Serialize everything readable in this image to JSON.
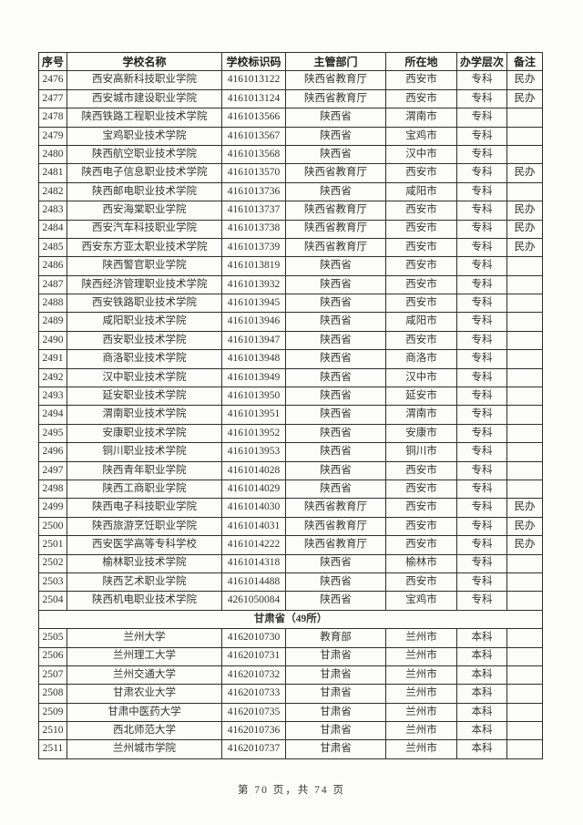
{
  "page": {
    "footer": "第 70 页，共 74 页"
  },
  "table": {
    "columns": [
      {
        "key": "xuhao",
        "label": "序号",
        "cls": "col-xh"
      },
      {
        "key": "mingcheng",
        "label": "学校名称",
        "cls": "col-mc"
      },
      {
        "key": "biaoshima",
        "label": "学校标识码",
        "cls": "col-bsm"
      },
      {
        "key": "zhuguan",
        "label": "主管部门",
        "cls": "col-zgbm"
      },
      {
        "key": "suozaidi",
        "label": "所在地",
        "cls": "col-szd"
      },
      {
        "key": "cengci",
        "label": "办学层次",
        "cls": "col-cc"
      },
      {
        "key": "beizhu",
        "label": "备注",
        "cls": "col-bz"
      }
    ],
    "rows": [
      {
        "t": "r",
        "c": [
          "2476",
          "西安高新科技职业学院",
          "4161013122",
          "陕西省教育厅",
          "西安市",
          "专科",
          "民办"
        ]
      },
      {
        "t": "r",
        "c": [
          "2477",
          "西安城市建设职业学院",
          "4161013124",
          "陕西省教育厅",
          "西安市",
          "专科",
          "民办"
        ]
      },
      {
        "t": "r",
        "c": [
          "2478",
          "陕西铁路工程职业技术学院",
          "4161013566",
          "陕西省",
          "渭南市",
          "专科",
          ""
        ]
      },
      {
        "t": "r",
        "c": [
          "2479",
          "宝鸡职业技术学院",
          "4161013567",
          "陕西省",
          "宝鸡市",
          "专科",
          ""
        ]
      },
      {
        "t": "r",
        "c": [
          "2480",
          "陕西航空职业技术学院",
          "4161013568",
          "陕西省",
          "汉中市",
          "专科",
          ""
        ]
      },
      {
        "t": "r",
        "c": [
          "2481",
          "陕西电子信息职业技术学院",
          "4161013570",
          "陕西省教育厅",
          "西安市",
          "专科",
          "民办"
        ]
      },
      {
        "t": "r",
        "c": [
          "2482",
          "陕西邮电职业技术学院",
          "4161013736",
          "陕西省",
          "咸阳市",
          "专科",
          ""
        ]
      },
      {
        "t": "r",
        "c": [
          "2483",
          "西安海棠职业学院",
          "4161013737",
          "陕西省教育厅",
          "西安市",
          "专科",
          "民办"
        ]
      },
      {
        "t": "r",
        "c": [
          "2484",
          "西安汽车科技职业学院",
          "4161013738",
          "陕西省教育厅",
          "西安市",
          "专科",
          "民办"
        ]
      },
      {
        "t": "r",
        "c": [
          "2485",
          "西安东方亚太职业技术学院",
          "4161013739",
          "陕西省教育厅",
          "西安市",
          "专科",
          "民办"
        ]
      },
      {
        "t": "r",
        "c": [
          "2486",
          "陕西警官职业学院",
          "4161013819",
          "陕西省",
          "西安市",
          "专科",
          ""
        ]
      },
      {
        "t": "r",
        "c": [
          "2487",
          "陕西经济管理职业技术学院",
          "4161013932",
          "陕西省",
          "西安市",
          "专科",
          ""
        ]
      },
      {
        "t": "r",
        "c": [
          "2488",
          "西安铁路职业技术学院",
          "4161013945",
          "陕西省",
          "西安市",
          "专科",
          ""
        ]
      },
      {
        "t": "r",
        "c": [
          "2489",
          "咸阳职业技术学院",
          "4161013946",
          "陕西省",
          "咸阳市",
          "专科",
          ""
        ]
      },
      {
        "t": "r",
        "c": [
          "2490",
          "西安职业技术学院",
          "4161013947",
          "陕西省",
          "西安市",
          "专科",
          ""
        ]
      },
      {
        "t": "r",
        "c": [
          "2491",
          "商洛职业技术学院",
          "4161013948",
          "陕西省",
          "商洛市",
          "专科",
          ""
        ]
      },
      {
        "t": "r",
        "c": [
          "2492",
          "汉中职业技术学院",
          "4161013949",
          "陕西省",
          "汉中市",
          "专科",
          ""
        ]
      },
      {
        "t": "r",
        "c": [
          "2493",
          "延安职业技术学院",
          "4161013950",
          "陕西省",
          "延安市",
          "专科",
          ""
        ]
      },
      {
        "t": "r",
        "c": [
          "2494",
          "渭南职业技术学院",
          "4161013951",
          "陕西省",
          "渭南市",
          "专科",
          ""
        ]
      },
      {
        "t": "r",
        "c": [
          "2495",
          "安康职业技术学院",
          "4161013952",
          "陕西省",
          "安康市",
          "专科",
          ""
        ]
      },
      {
        "t": "r",
        "c": [
          "2496",
          "铜川职业技术学院",
          "4161013953",
          "陕西省",
          "铜川市",
          "专科",
          ""
        ]
      },
      {
        "t": "r",
        "c": [
          "2497",
          "陕西青年职业学院",
          "4161014028",
          "陕西省",
          "西安市",
          "专科",
          ""
        ]
      },
      {
        "t": "r",
        "c": [
          "2498",
          "陕西工商职业学院",
          "4161014029",
          "陕西省",
          "西安市",
          "专科",
          ""
        ]
      },
      {
        "t": "r",
        "c": [
          "2499",
          "陕西电子科技职业学院",
          "4161014030",
          "陕西省教育厅",
          "西安市",
          "专科",
          "民办"
        ]
      },
      {
        "t": "r",
        "c": [
          "2500",
          "陕西旅游烹饪职业学院",
          "4161014031",
          "陕西省教育厅",
          "西安市",
          "专科",
          "民办"
        ]
      },
      {
        "t": "r",
        "c": [
          "2501",
          "西安医学高等专科学校",
          "4161014222",
          "陕西省教育厅",
          "西安市",
          "专科",
          "民办"
        ]
      },
      {
        "t": "r",
        "c": [
          "2502",
          "榆林职业技术学院",
          "4161014318",
          "陕西省",
          "榆林市",
          "专科",
          ""
        ]
      },
      {
        "t": "r",
        "c": [
          "2503",
          "陕西艺术职业学院",
          "4161014488",
          "陕西省",
          "西安市",
          "专科",
          ""
        ]
      },
      {
        "t": "r",
        "c": [
          "2504",
          "陕西机电职业技术学院",
          "4261050084",
          "陕西省",
          "宝鸡市",
          "专科",
          ""
        ]
      },
      {
        "t": "s",
        "label": "甘肃省（49所）"
      },
      {
        "t": "r",
        "c": [
          "2505",
          "兰州大学",
          "4162010730",
          "教育部",
          "兰州市",
          "本科",
          ""
        ]
      },
      {
        "t": "r",
        "c": [
          "2506",
          "兰州理工大学",
          "4162010731",
          "甘肃省",
          "兰州市",
          "本科",
          ""
        ]
      },
      {
        "t": "r",
        "c": [
          "2507",
          "兰州交通大学",
          "4162010732",
          "甘肃省",
          "兰州市",
          "本科",
          ""
        ]
      },
      {
        "t": "r",
        "c": [
          "2508",
          "甘肃农业大学",
          "4162010733",
          "甘肃省",
          "兰州市",
          "本科",
          ""
        ]
      },
      {
        "t": "r",
        "c": [
          "2509",
          "甘肃中医药大学",
          "4162010735",
          "甘肃省",
          "兰州市",
          "本科",
          ""
        ]
      },
      {
        "t": "r",
        "c": [
          "2510",
          "西北师范大学",
          "4162010736",
          "甘肃省",
          "兰州市",
          "本科",
          ""
        ]
      },
      {
        "t": "r",
        "c": [
          "2511",
          "兰州城市学院",
          "4162010737",
          "甘肃省",
          "兰州市",
          "本科",
          ""
        ]
      }
    ]
  }
}
